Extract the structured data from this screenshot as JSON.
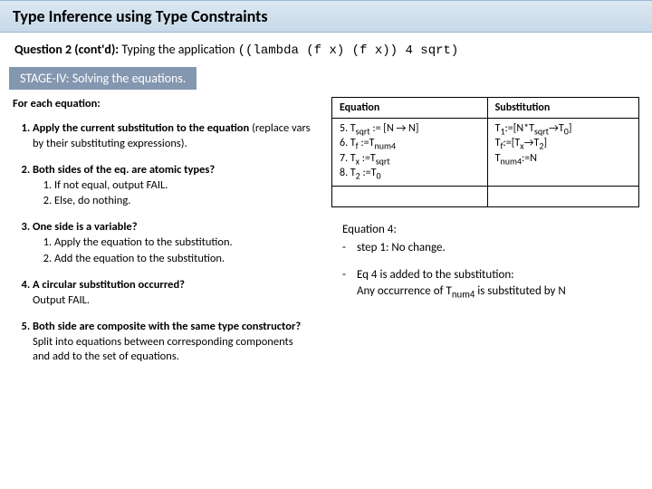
{
  "title": "Type Inference using Type Constraints",
  "question": {
    "label": "Question 2 (cont'd):",
    "text": "Typing the application ",
    "code": "((lambda (f x)  (f x)) 4 sqrt)"
  },
  "stage": "STAGE-IV: Solving the equations.",
  "left": {
    "intro": "For each equation:",
    "items": [
      {
        "head": "Apply the current substitution to the equation",
        "body": "(replace vars by their substituting expressions).",
        "inner": []
      },
      {
        "head": "Both sides of the eq. are atomic types?",
        "body": "",
        "inner": [
          "If not equal, output FAIL.",
          "Else, do nothing."
        ]
      },
      {
        "head": "One side is a variable?",
        "body": "",
        "inner": [
          "Apply the equation to the substitution.",
          "Add the equation to the substitution."
        ]
      },
      {
        "head": "A circular substitution occurred?",
        "body": "Output FAIL.",
        "inner": []
      },
      {
        "head": "Both side are composite with the same type constructor?",
        "body": "Split into equations between corresponding components and add to the set of equations.",
        "inner": []
      }
    ]
  },
  "table": {
    "headers": {
      "eq": "Equation",
      "sub": "Substitution"
    },
    "eq_lines": [
      "5. T<sub>sqrt</sub> := [N → N]",
      "6. T<sub>f</sub> :=T<sub>num4</sub>",
      "7. T<sub>x</sub> :=T<sub>sqrt</sub>",
      "8. T<sub>2</sub> :=T<sub>0</sub>"
    ],
    "sub_lines": [
      "T<sub>1</sub>:=[N*T<sub>sqrt</sub>→T<sub>0</sub>]",
      "T<sub>f</sub>:=[T<sub>x</sub>→T<sub>2</sub>]",
      "T<sub>num4</sub>:=N"
    ]
  },
  "notes": {
    "header": "Equation 4:",
    "l1": "step 1: No change.",
    "l2": "Eq 4 is added to the substitution:",
    "l3_html": "Any occurrence of T<sub>num4</sub> is substituted by N"
  }
}
